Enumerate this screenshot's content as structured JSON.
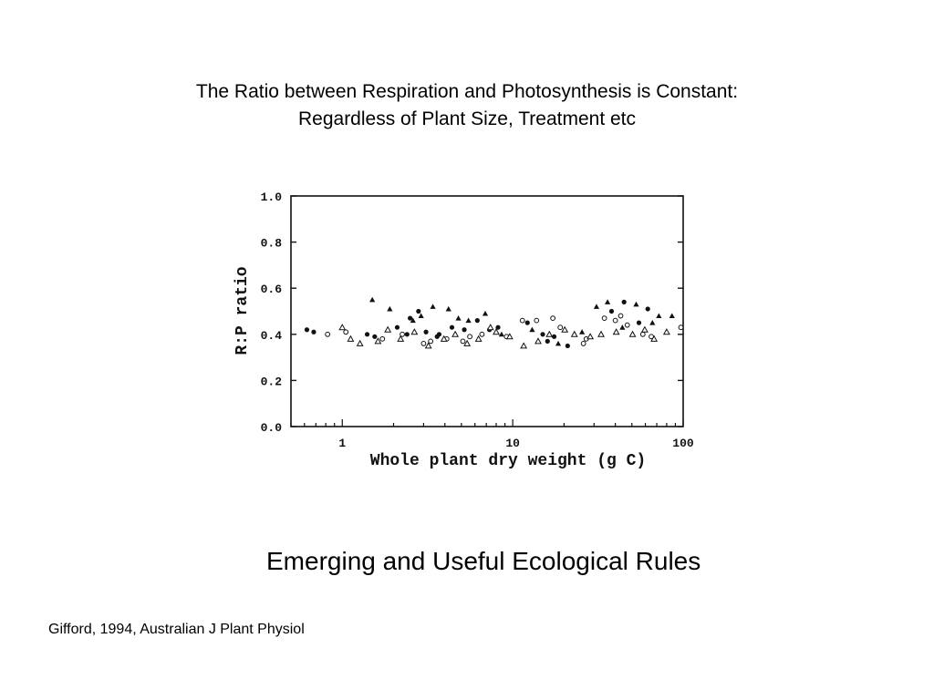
{
  "slide": {
    "title_line1": "The Ratio between Respiration and Photosynthesis is Constant:",
    "title_line2": "Regardless of Plant Size, Treatment etc",
    "subtitle": "Emerging and Useful Ecological Rules",
    "citation": "Gifford, 1994, Australian J Plant Physiol"
  },
  "chart_data": {
    "type": "scatter",
    "title": "",
    "xlabel": "Whole plant dry weight (g C)",
    "ylabel": "R:P ratio",
    "x_scale": "log",
    "xlim": [
      0.5,
      100
    ],
    "ylim": [
      0.0,
      1.0
    ],
    "x_ticks": [
      {
        "value": 1,
        "label": "1"
      },
      {
        "value": 10,
        "label": "10"
      },
      {
        "value": 100,
        "label": "100"
      }
    ],
    "y_ticks": [
      {
        "value": 0.0,
        "label": "0.0"
      },
      {
        "value": 0.2,
        "label": "0.2"
      },
      {
        "value": 0.4,
        "label": "0.4"
      },
      {
        "value": 0.6,
        "label": "0.6"
      },
      {
        "value": 0.8,
        "label": "0.8"
      },
      {
        "value": 1.0,
        "label": "1.0"
      }
    ],
    "grid": false,
    "legend": "none",
    "marker_color": "#111111",
    "series": [
      {
        "marker": "filled-circle",
        "points": [
          [
            0.62,
            0.42
          ],
          [
            0.68,
            0.41
          ],
          [
            1.4,
            0.4
          ],
          [
            1.55,
            0.39
          ],
          [
            2.1,
            0.43
          ],
          [
            2.4,
            0.4
          ],
          [
            2.8,
            0.5
          ],
          [
            3.1,
            0.41
          ],
          [
            3.7,
            0.4
          ],
          [
            4.4,
            0.43
          ],
          [
            5.2,
            0.42
          ],
          [
            6.2,
            0.46
          ],
          [
            7.3,
            0.42
          ],
          [
            8.2,
            0.43
          ],
          [
            12.2,
            0.45
          ],
          [
            15.0,
            0.4
          ],
          [
            17.5,
            0.39
          ],
          [
            21.0,
            0.35
          ],
          [
            38.0,
            0.5
          ],
          [
            45.0,
            0.54
          ],
          [
            55.0,
            0.45
          ],
          [
            62.0,
            0.51
          ],
          [
            2.5,
            0.47
          ],
          [
            3.6,
            0.39
          ],
          [
            16.0,
            0.37
          ]
        ]
      },
      {
        "marker": "open-circle",
        "points": [
          [
            0.82,
            0.4
          ],
          [
            1.05,
            0.41
          ],
          [
            1.72,
            0.38
          ],
          [
            2.25,
            0.4
          ],
          [
            3.3,
            0.37
          ],
          [
            4.1,
            0.38
          ],
          [
            5.1,
            0.37
          ],
          [
            6.6,
            0.4
          ],
          [
            9.2,
            0.39
          ],
          [
            11.4,
            0.46
          ],
          [
            13.8,
            0.46
          ],
          [
            17.2,
            0.47
          ],
          [
            19.0,
            0.43
          ],
          [
            26.0,
            0.36
          ],
          [
            34.5,
            0.47
          ],
          [
            40.0,
            0.46
          ],
          [
            43.0,
            0.48
          ],
          [
            47.0,
            0.44
          ],
          [
            58.0,
            0.4
          ],
          [
            65.0,
            0.39
          ],
          [
            97.0,
            0.43
          ],
          [
            3.0,
            0.36
          ],
          [
            5.6,
            0.39
          ],
          [
            27.0,
            0.38
          ]
        ]
      },
      {
        "marker": "filled-triangle",
        "points": [
          [
            1.5,
            0.55
          ],
          [
            1.9,
            0.51
          ],
          [
            2.9,
            0.48
          ],
          [
            3.4,
            0.52
          ],
          [
            4.2,
            0.51
          ],
          [
            4.8,
            0.47
          ],
          [
            6.9,
            0.49
          ],
          [
            25.5,
            0.41
          ],
          [
            31.0,
            0.52
          ],
          [
            36.0,
            0.54
          ],
          [
            53.0,
            0.53
          ],
          [
            72.0,
            0.48
          ],
          [
            86.0,
            0.48
          ],
          [
            2.6,
            0.46
          ],
          [
            5.5,
            0.46
          ],
          [
            8.6,
            0.4
          ],
          [
            13.0,
            0.42
          ],
          [
            18.5,
            0.36
          ],
          [
            44.0,
            0.43
          ],
          [
            66.0,
            0.45
          ]
        ]
      },
      {
        "marker": "open-triangle",
        "points": [
          [
            1.0,
            0.43
          ],
          [
            1.12,
            0.38
          ],
          [
            1.27,
            0.36
          ],
          [
            1.62,
            0.37
          ],
          [
            1.85,
            0.42
          ],
          [
            2.2,
            0.38
          ],
          [
            2.65,
            0.41
          ],
          [
            3.2,
            0.35
          ],
          [
            3.95,
            0.38
          ],
          [
            4.6,
            0.4
          ],
          [
            5.4,
            0.36
          ],
          [
            6.3,
            0.38
          ],
          [
            7.4,
            0.43
          ],
          [
            8.0,
            0.41
          ],
          [
            9.6,
            0.39
          ],
          [
            11.6,
            0.35
          ],
          [
            14.1,
            0.37
          ],
          [
            16.4,
            0.4
          ],
          [
            20.2,
            0.42
          ],
          [
            23.0,
            0.4
          ],
          [
            28.5,
            0.39
          ],
          [
            33.0,
            0.4
          ],
          [
            40.5,
            0.41
          ],
          [
            50.5,
            0.4
          ],
          [
            59.5,
            0.42
          ],
          [
            67.5,
            0.38
          ],
          [
            80.0,
            0.41
          ]
        ]
      }
    ]
  }
}
